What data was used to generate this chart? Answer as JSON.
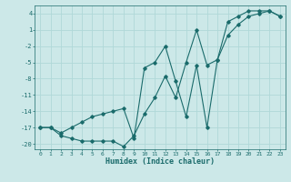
{
  "xlabel": "Humidex (Indice chaleur)",
  "background_color": "#cce8e8",
  "grid_color": "#b0d8d8",
  "line_color": "#1a6b6b",
  "xlim": [
    -0.5,
    23.5
  ],
  "ylim": [
    -21,
    5.5
  ],
  "yticks": [
    4,
    1,
    -2,
    -5,
    -8,
    -11,
    -14,
    -17,
    -20
  ],
  "xticks": [
    0,
    1,
    2,
    3,
    4,
    5,
    6,
    7,
    8,
    9,
    10,
    11,
    12,
    13,
    14,
    15,
    16,
    17,
    18,
    19,
    20,
    21,
    22,
    23
  ],
  "series1_x": [
    0,
    1,
    2,
    3,
    4,
    5,
    6,
    7,
    8,
    9,
    10,
    11,
    12,
    13,
    14,
    15,
    16,
    17,
    18,
    19,
    20,
    21,
    22,
    23
  ],
  "series1_y": [
    -17,
    -17,
    -18.5,
    -19,
    -19.5,
    -19.5,
    -19.5,
    -19.5,
    -20.5,
    -18.5,
    -14.5,
    -11.5,
    -7.5,
    -11.5,
    -5,
    1,
    -5.5,
    -4.5,
    2.5,
    3.5,
    4.5,
    4.5,
    4.5,
    3.5
  ],
  "series2_x": [
    0,
    1,
    2,
    3,
    4,
    5,
    6,
    7,
    8,
    9,
    10,
    11,
    12,
    13,
    14,
    15,
    16,
    17,
    18,
    19,
    20,
    21,
    22,
    23
  ],
  "series2_y": [
    -17,
    -17,
    -18,
    -17,
    -16,
    -15,
    -14.5,
    -14,
    -13.5,
    -19,
    -6,
    -5,
    -2,
    -8.5,
    -15,
    -5.5,
    -17,
    -4.5,
    0,
    2,
    3.5,
    4,
    4.5,
    3.5
  ]
}
